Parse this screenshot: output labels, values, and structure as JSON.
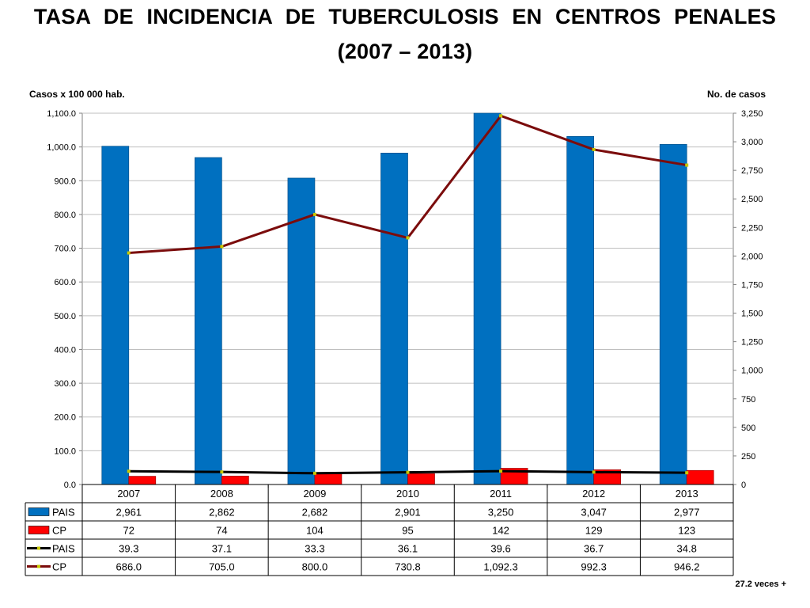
{
  "title_line1": "TASA  DE  INCIDENCIA  DE TUBERCULOSIS  EN  CENTROS  PENALES",
  "title_line2": "(2007 – 2013)",
  "footnote": "27.2 veces +",
  "colors": {
    "pais_bar": "#0070c0",
    "cp_bar": "#ff0000",
    "pais_line": "#000000",
    "cp_line": "#7b0c0c",
    "marker": "#c8c800",
    "grid": "#bfbfbf"
  },
  "chart_data": {
    "type": "bar",
    "categories": [
      "2007",
      "2008",
      "2009",
      "2010",
      "2011",
      "2012",
      "2013"
    ],
    "y_left_label": "Casos x 100 000 hab.",
    "y_right_label": "No. de casos",
    "y_left_range": [
      0,
      1100
    ],
    "y_right_range": [
      0,
      3250
    ],
    "y_left_ticks": [
      "0.0",
      "100.0",
      "200.0",
      "300.0",
      "400.0",
      "500.0",
      "600.0",
      "700.0",
      "800.0",
      "900.0",
      "1,000.0",
      "1,100.0"
    ],
    "y_right_ticks": [
      "0",
      "250",
      "500",
      "750",
      "1,000",
      "1,250",
      "1,500",
      "1,750",
      "2,000",
      "2,250",
      "2,500",
      "2,750",
      "3,000",
      "3,250"
    ],
    "grid": true,
    "legend": "data-table",
    "series": [
      {
        "name": "PAIS",
        "kind": "bar",
        "axis": "right",
        "values": [
          2961,
          2862,
          2682,
          2901,
          3250,
          3047,
          2977
        ],
        "labels": [
          "2,961",
          "2,862",
          "2,682",
          "2,901",
          "3,250",
          "3,047",
          "2,977"
        ]
      },
      {
        "name": "CP",
        "kind": "bar",
        "axis": "right",
        "values": [
          72,
          74,
          104,
          95,
          142,
          129,
          123
        ],
        "labels": [
          "72",
          "74",
          "104",
          "95",
          "142",
          "129",
          "123"
        ]
      },
      {
        "name": "PAIS",
        "kind": "line",
        "axis": "left",
        "values": [
          39.3,
          37.1,
          33.3,
          36.1,
          39.6,
          36.7,
          34.8
        ],
        "labels": [
          "39.3",
          "37.1",
          "33.3",
          "36.1",
          "39.6",
          "36.7",
          "34.8"
        ]
      },
      {
        "name": "CP",
        "kind": "line",
        "axis": "left",
        "values": [
          686.0,
          705.0,
          800.0,
          730.8,
          1092.3,
          992.3,
          946.2
        ],
        "labels": [
          "686.0",
          "705.0",
          "800.0",
          "730.8",
          "1,092.3",
          "992.3",
          "946.2"
        ]
      }
    ]
  }
}
